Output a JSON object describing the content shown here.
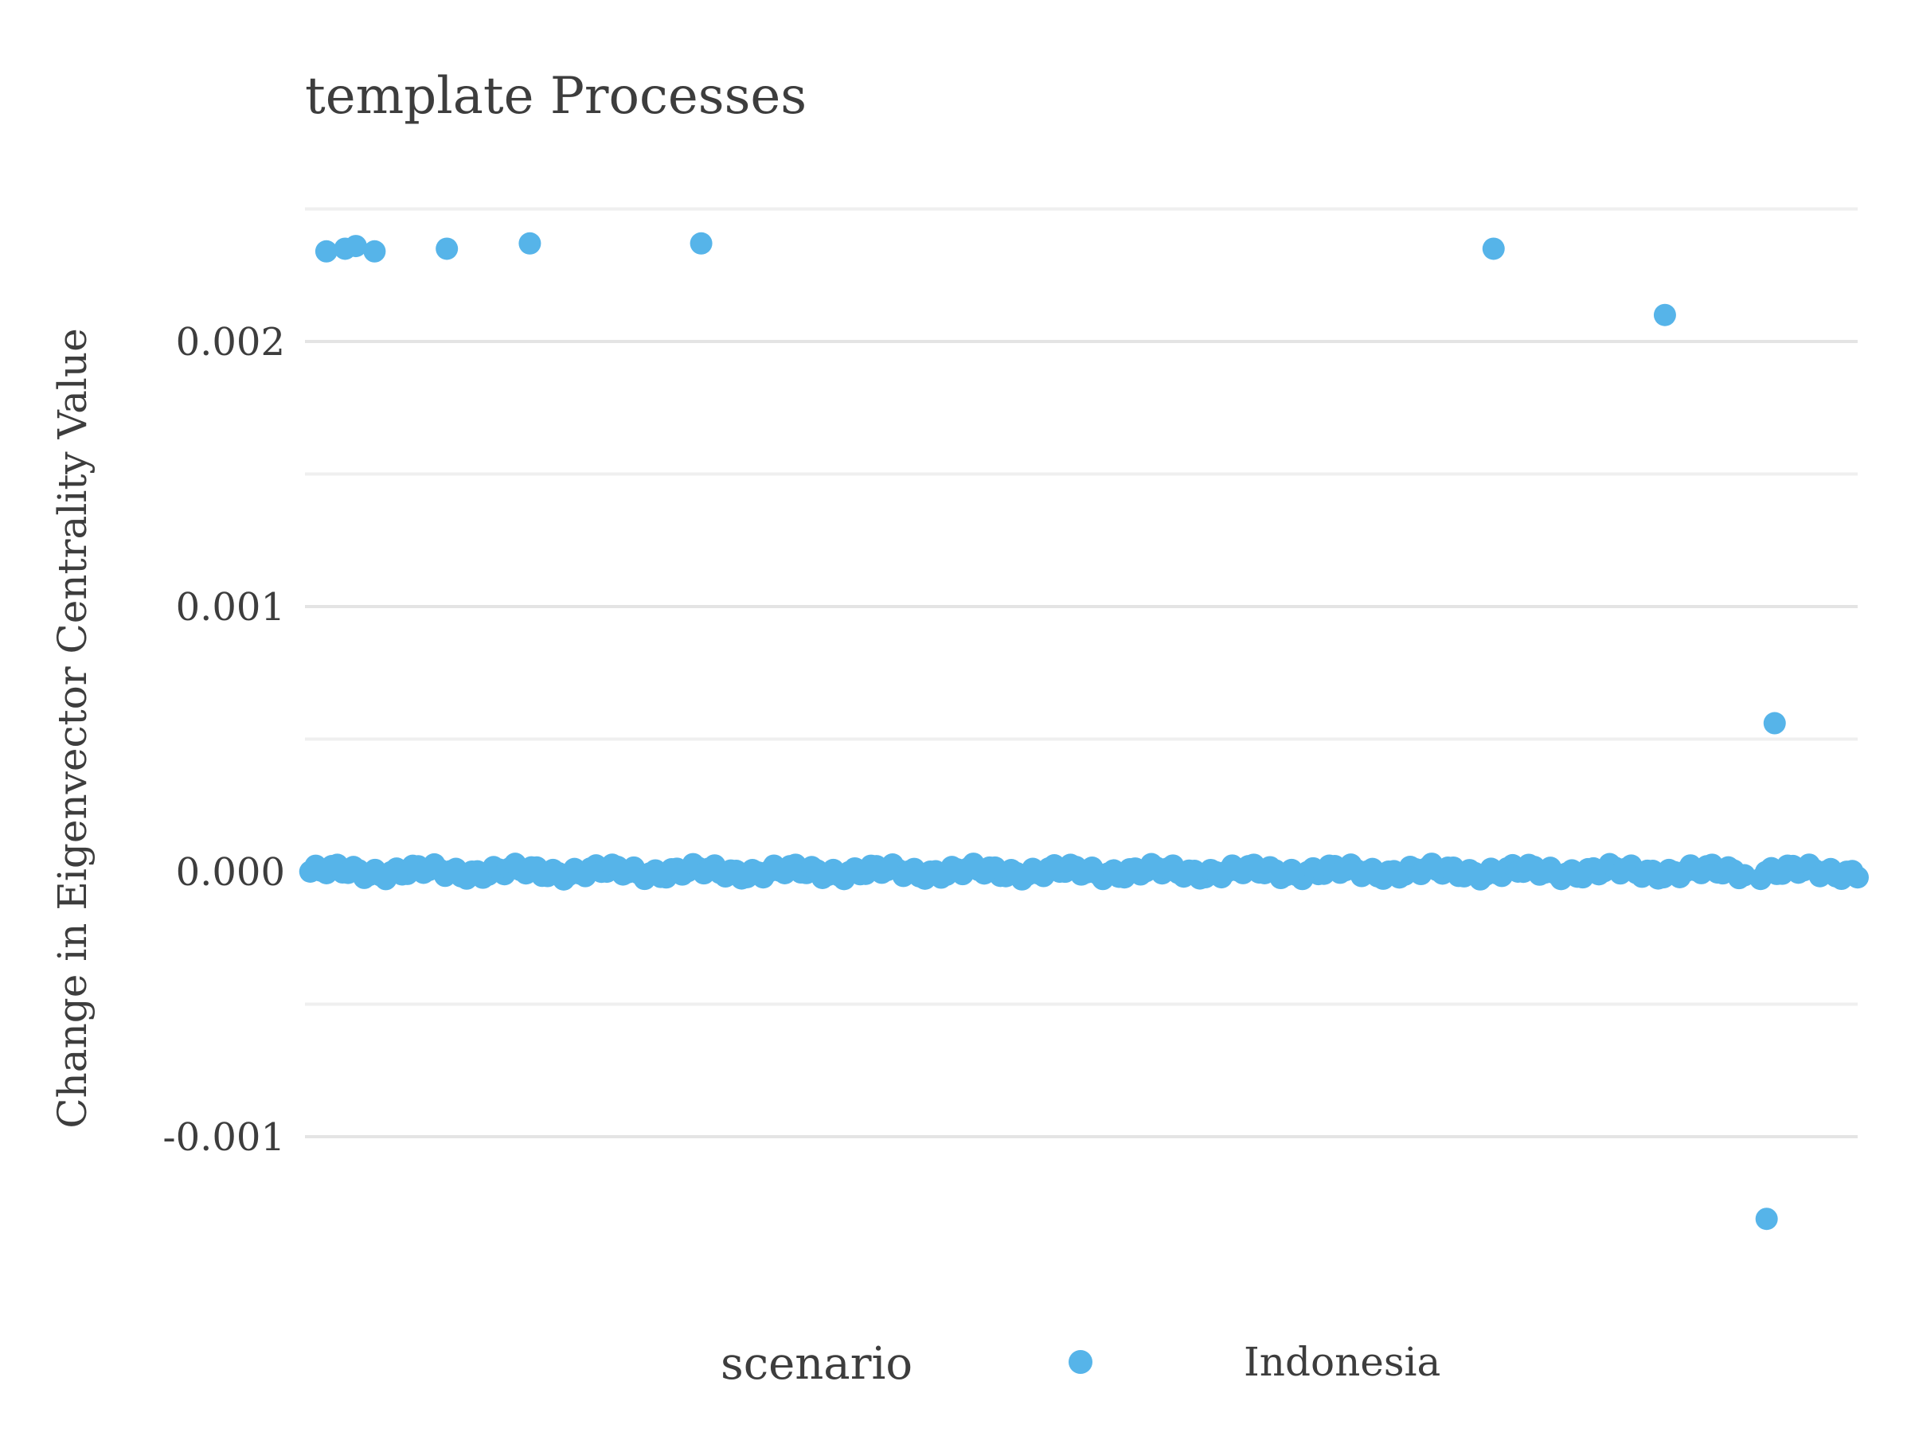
{
  "chart_data": {
    "type": "scatter",
    "title": "template Processes",
    "xlabel": "",
    "ylabel": "Change in Eigenvector Centrality Value",
    "ylim": [
      -0.00145,
      0.0025
    ],
    "xlim": [
      0,
      290
    ],
    "y_ticks": [
      -0.001,
      0.0,
      0.001,
      0.002
    ],
    "y_tick_labels": [
      "-0.001",
      "0.000",
      "0.001",
      "0.002"
    ],
    "y_minor_gridlines": [
      -0.0005,
      0.0005,
      0.0015,
      0.0025
    ],
    "grid": true,
    "legend": {
      "title": "scenario",
      "position": "bottom",
      "entries": [
        "Indonesia"
      ]
    },
    "colors": {
      "series": "#56B4E9",
      "grid": "#e4e4e4",
      "text": "#3d3d3d"
    },
    "series": [
      {
        "name": "Indonesia",
        "points": [
          {
            "x": 4,
            "y": 0.00234
          },
          {
            "x": 7.5,
            "y": 0.00235
          },
          {
            "x": 9.5,
            "y": 0.00236
          },
          {
            "x": 13,
            "y": 0.00234
          },
          {
            "x": 26.5,
            "y": 0.00235
          },
          {
            "x": 42,
            "y": 0.00237
          },
          {
            "x": 74,
            "y": 0.00237
          },
          {
            "x": 222,
            "y": 0.00235
          },
          {
            "x": 254,
            "y": 0.0021
          },
          {
            "x": 274.5,
            "y": 0.00056
          },
          {
            "x": 273,
            "y": -0.00131
          }
        ],
        "baseline": {
          "x_start": 1,
          "x_end": 290,
          "count": 288,
          "y_center": 0.0,
          "y_jitter": 3e-05,
          "skip_x": [
            270
          ]
        }
      }
    ]
  }
}
